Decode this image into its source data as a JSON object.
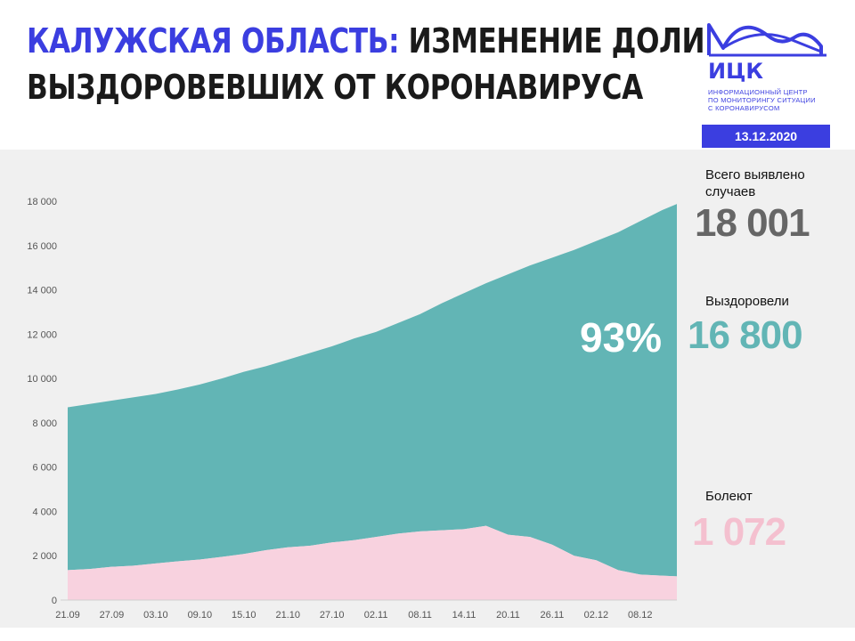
{
  "header": {
    "title_accent": "КАЛУЖСКАЯ ОБЛАСТЬ:",
    "title_line1_rest": "ИЗМЕНЕНИЕ ДОЛИ",
    "title_line2": "ВЫЗДОРОВЕВШИХ ОТ КОРОНАВИРУСА"
  },
  "logo": {
    "name": "ИЦК",
    "subtitle_lines": [
      "Информационный центр",
      "по мониторингу ситуации",
      "с коронавирусом"
    ],
    "date": "13.12.2020"
  },
  "stats": {
    "total_label_line1": "Всего выявлено",
    "total_label_line2": "случаев",
    "total_value": "18 001",
    "recovered_label": "Выздоровели",
    "recovered_value": "16 800",
    "recovered_share": "93%",
    "sick_label": "Болеют",
    "sick_value": "1 072"
  },
  "colors": {
    "accent": "#3b3ee0",
    "recovered": "#62b5b5",
    "sick": "#f8d2df",
    "total_value": "#666666",
    "recovered_value": "#62b5b5",
    "sick_value": "#f4c0cf"
  },
  "chart_data": {
    "type": "area",
    "x_ticks": [
      "21.09",
      "27.09",
      "03.10",
      "09.10",
      "15.10",
      "21.10",
      "27.10",
      "02.11",
      "08.11",
      "14.11",
      "20.11",
      "26.11",
      "02.12",
      "08.12"
    ],
    "y_ticks": [
      "0",
      "2 000",
      "4 000",
      "6 000",
      "8 000",
      "10 000",
      "12 000",
      "14 000",
      "16 000",
      "18 000"
    ],
    "ylim": [
      0,
      18000
    ],
    "grid": false,
    "x_range": [
      "21.09",
      "13.12"
    ],
    "series": [
      {
        "name": "Болеют",
        "stack_order": 1,
        "points": [
          [
            "21.09",
            1350
          ],
          [
            "24.09",
            1400
          ],
          [
            "27.09",
            1500
          ],
          [
            "30.09",
            1550
          ],
          [
            "03.10",
            1650
          ],
          [
            "06.10",
            1750
          ],
          [
            "09.10",
            1830
          ],
          [
            "12.10",
            1950
          ],
          [
            "15.10",
            2080
          ],
          [
            "18.10",
            2250
          ],
          [
            "21.10",
            2380
          ],
          [
            "24.10",
            2450
          ],
          [
            "27.10",
            2600
          ],
          [
            "30.10",
            2700
          ],
          [
            "02.11",
            2850
          ],
          [
            "05.11",
            3000
          ],
          [
            "08.11",
            3100
          ],
          [
            "11.11",
            3150
          ],
          [
            "14.11",
            3200
          ],
          [
            "17.11",
            3350
          ],
          [
            "20.11",
            2950
          ],
          [
            "23.11",
            2850
          ],
          [
            "26.11",
            2500
          ],
          [
            "29.11",
            2000
          ],
          [
            "02.12",
            1800
          ],
          [
            "05.12",
            1350
          ],
          [
            "08.12",
            1150
          ],
          [
            "11.12",
            1100
          ],
          [
            "13.12",
            1072
          ]
        ]
      },
      {
        "name": "Выздоровели",
        "stack_order": 2,
        "points": [
          [
            "21.09",
            7350
          ],
          [
            "24.09",
            7450
          ],
          [
            "27.09",
            7500
          ],
          [
            "30.09",
            7600
          ],
          [
            "03.10",
            7650
          ],
          [
            "06.10",
            7750
          ],
          [
            "09.10",
            7900
          ],
          [
            "12.10",
            8050
          ],
          [
            "15.10",
            8220
          ],
          [
            "18.10",
            8300
          ],
          [
            "21.10",
            8470
          ],
          [
            "24.10",
            8700
          ],
          [
            "27.10",
            8850
          ],
          [
            "30.10",
            9100
          ],
          [
            "02.11",
            9250
          ],
          [
            "05.11",
            9500
          ],
          [
            "08.11",
            9800
          ],
          [
            "11.11",
            10250
          ],
          [
            "14.11",
            10650
          ],
          [
            "17.11",
            10950
          ],
          [
            "20.11",
            11750
          ],
          [
            "23.11",
            12250
          ],
          [
            "26.11",
            12950
          ],
          [
            "29.11",
            13800
          ],
          [
            "02.12",
            14400
          ],
          [
            "05.12",
            15250
          ],
          [
            "08.12",
            15950
          ],
          [
            "11.12",
            16500
          ],
          [
            "13.12",
            16800
          ]
        ]
      }
    ]
  }
}
